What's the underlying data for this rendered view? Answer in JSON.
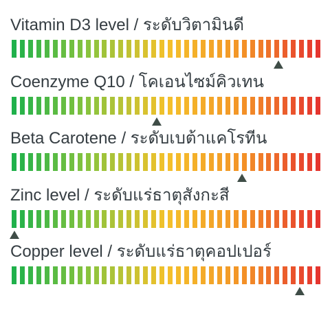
{
  "meters": [
    {
      "label": "Vitamin D3 level / ระดับวิตามินดี",
      "level": 0.87
    },
    {
      "label": "Coenzyme Q10 / โคเอนไซม์คิวเทน",
      "level": 0.47
    },
    {
      "label": "Beta Carotene / ระดับเบต้าแคโรทีน",
      "level": 0.75
    },
    {
      "label": "Zinc level / ระดับแร่ธาตุสังกะสี",
      "level": 0.0
    },
    {
      "label": "Copper level / ระดับแร่ธาตุคอปเปอร์",
      "level": 0.94
    }
  ],
  "colors": {
    "scale": [
      "#1fb14b",
      "#8cc43d",
      "#f4c12b",
      "#f39327",
      "#e5352f"
    ],
    "marker": "#3f4d47"
  }
}
